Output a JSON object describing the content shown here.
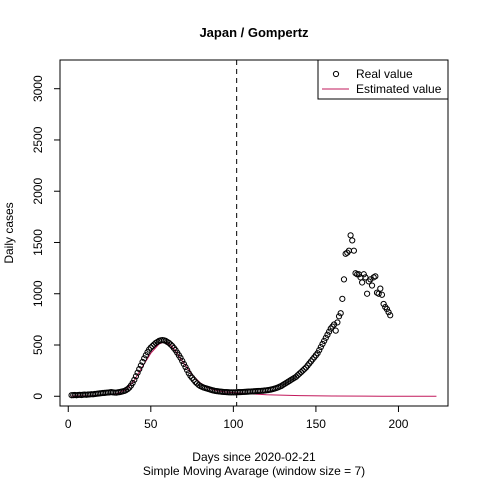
{
  "chart_data": {
    "type": "scatter",
    "title": "Japan / Gompertz",
    "xlabel": "Days since 2020-02-21",
    "subtitle": "Simple Moving Avarage (window size = 7)",
    "ylabel": "Daily cases",
    "xlim": [
      -5,
      230
    ],
    "ylim": [
      -95,
      3280
    ],
    "x_ticks": [
      0,
      50,
      100,
      150,
      200
    ],
    "y_ticks": [
      0,
      500,
      1000,
      1500,
      2000,
      2500,
      3000
    ],
    "vline": {
      "x": 102,
      "style": "dashed"
    },
    "grid": false,
    "legend": {
      "position": "top-right",
      "entries": [
        {
          "label": "Real value",
          "marker": "open-circle",
          "color": "#000000"
        },
        {
          "label": "Estimated value",
          "marker": "line",
          "color": "#c2185b"
        }
      ]
    },
    "series": [
      {
        "name": "Real value",
        "style": "points",
        "color": "#000000",
        "points": [
          [
            2,
            10
          ],
          [
            3,
            11
          ],
          [
            4,
            12
          ],
          [
            5,
            10
          ],
          [
            6,
            13
          ],
          [
            7,
            14
          ],
          [
            8,
            12
          ],
          [
            9,
            15
          ],
          [
            10,
            16
          ],
          [
            11,
            14
          ],
          [
            12,
            17
          ],
          [
            13,
            18
          ],
          [
            14,
            20
          ],
          [
            15,
            19
          ],
          [
            16,
            22
          ],
          [
            17,
            24
          ],
          [
            18,
            26
          ],
          [
            19,
            28
          ],
          [
            20,
            30
          ],
          [
            21,
            32
          ],
          [
            22,
            33
          ],
          [
            23,
            35
          ],
          [
            24,
            36
          ],
          [
            25,
            38
          ],
          [
            26,
            40
          ],
          [
            27,
            38
          ],
          [
            28,
            36
          ],
          [
            29,
            35
          ],
          [
            30,
            38
          ],
          [
            31,
            40
          ],
          [
            32,
            44
          ],
          [
            33,
            48
          ],
          [
            34,
            52
          ],
          [
            35,
            60
          ],
          [
            36,
            70
          ],
          [
            37,
            85
          ],
          [
            38,
            105
          ],
          [
            39,
            130
          ],
          [
            40,
            160
          ],
          [
            41,
            195
          ],
          [
            42,
            230
          ],
          [
            43,
            265
          ],
          [
            44,
            300
          ],
          [
            45,
            335
          ],
          [
            46,
            370
          ],
          [
            47,
            400
          ],
          [
            48,
            430
          ],
          [
            49,
            455
          ],
          [
            50,
            475
          ],
          [
            51,
            490
          ],
          [
            52,
            505
          ],
          [
            53,
            520
          ],
          [
            54,
            530
          ],
          [
            55,
            540
          ],
          [
            56,
            545
          ],
          [
            57,
            548
          ],
          [
            58,
            545
          ],
          [
            59,
            540
          ],
          [
            60,
            530
          ],
          [
            61,
            520
          ],
          [
            62,
            505
          ],
          [
            63,
            490
          ],
          [
            64,
            470
          ],
          [
            65,
            450
          ],
          [
            66,
            425
          ],
          [
            67,
            400
          ],
          [
            68,
            375
          ],
          [
            69,
            345
          ],
          [
            70,
            315
          ],
          [
            71,
            285
          ],
          [
            72,
            255
          ],
          [
            73,
            225
          ],
          [
            74,
            200
          ],
          [
            75,
            180
          ],
          [
            76,
            160
          ],
          [
            77,
            140
          ],
          [
            78,
            125
          ],
          [
            79,
            110
          ],
          [
            80,
            100
          ],
          [
            81,
            92
          ],
          [
            82,
            85
          ],
          [
            83,
            80
          ],
          [
            84,
            75
          ],
          [
            85,
            70
          ],
          [
            86,
            65
          ],
          [
            87,
            60
          ],
          [
            88,
            56
          ],
          [
            89,
            52
          ],
          [
            90,
            50
          ],
          [
            91,
            48
          ],
          [
            92,
            46
          ],
          [
            93,
            44
          ],
          [
            94,
            42
          ],
          [
            95,
            41
          ],
          [
            96,
            40
          ],
          [
            97,
            39
          ],
          [
            98,
            38
          ],
          [
            99,
            38
          ],
          [
            100,
            38
          ],
          [
            101,
            38
          ],
          [
            102,
            39
          ],
          [
            103,
            40
          ],
          [
            104,
            40
          ],
          [
            105,
            41
          ],
          [
            106,
            42
          ],
          [
            107,
            43
          ],
          [
            108,
            44
          ],
          [
            109,
            45
          ],
          [
            110,
            46
          ],
          [
            111,
            47
          ],
          [
            112,
            48
          ],
          [
            113,
            49
          ],
          [
            114,
            50
          ],
          [
            115,
            51
          ],
          [
            116,
            52
          ],
          [
            117,
            53
          ],
          [
            118,
            54
          ],
          [
            119,
            56
          ],
          [
            120,
            58
          ],
          [
            121,
            60
          ],
          [
            122,
            63
          ],
          [
            123,
            66
          ],
          [
            124,
            70
          ],
          [
            125,
            75
          ],
          [
            126,
            80
          ],
          [
            127,
            86
          ],
          [
            128,
            93
          ],
          [
            129,
            100
          ],
          [
            130,
            110
          ],
          [
            131,
            120
          ],
          [
            132,
            130
          ],
          [
            133,
            140
          ],
          [
            134,
            150
          ],
          [
            135,
            160
          ],
          [
            136,
            170
          ],
          [
            137,
            180
          ],
          [
            138,
            190
          ],
          [
            139,
            205
          ],
          [
            140,
            220
          ],
          [
            141,
            235
          ],
          [
            142,
            250
          ],
          [
            143,
            265
          ],
          [
            144,
            280
          ],
          [
            145,
            300
          ],
          [
            146,
            320
          ],
          [
            147,
            340
          ],
          [
            148,
            360
          ],
          [
            149,
            380
          ],
          [
            150,
            400
          ],
          [
            151,
            420
          ],
          [
            152,
            450
          ],
          [
            153,
            480
          ],
          [
            154,
            510
          ],
          [
            155,
            540
          ],
          [
            156,
            570
          ],
          [
            157,
            600
          ],
          [
            158,
            630
          ],
          [
            159,
            660
          ],
          [
            160,
            680
          ],
          [
            161,
            700
          ],
          [
            162,
            640
          ],
          [
            163,
            720
          ],
          [
            164,
            780
          ],
          [
            165,
            810
          ],
          [
            166,
            950
          ],
          [
            167,
            1140
          ],
          [
            168,
            1390
          ],
          [
            169,
            1400
          ],
          [
            170,
            1420
          ],
          [
            171,
            1570
          ],
          [
            172,
            1520
          ],
          [
            173,
            1420
          ],
          [
            174,
            1200
          ],
          [
            175,
            1190
          ],
          [
            176,
            1190
          ],
          [
            177,
            1160
          ],
          [
            178,
            1110
          ],
          [
            179,
            1190
          ],
          [
            180,
            1160
          ],
          [
            181,
            1000
          ],
          [
            182,
            1120
          ],
          [
            183,
            1140
          ],
          [
            184,
            1080
          ],
          [
            185,
            1160
          ],
          [
            186,
            1170
          ],
          [
            187,
            1010
          ],
          [
            188,
            1000
          ],
          [
            189,
            1050
          ],
          [
            190,
            990
          ],
          [
            191,
            900
          ],
          [
            192,
            870
          ],
          [
            193,
            850
          ],
          [
            194,
            820
          ],
          [
            195,
            790
          ]
        ]
      },
      {
        "name": "Estimated value",
        "style": "line",
        "color": "#c2185b",
        "points": [
          [
            2,
            2
          ],
          [
            15,
            5
          ],
          [
            25,
            15
          ],
          [
            30,
            28
          ],
          [
            35,
            65
          ],
          [
            40,
            155
          ],
          [
            45,
            290
          ],
          [
            50,
            420
          ],
          [
            55,
            510
          ],
          [
            58,
            530
          ],
          [
            62,
            500
          ],
          [
            65,
            440
          ],
          [
            70,
            320
          ],
          [
            75,
            210
          ],
          [
            80,
            130
          ],
          [
            85,
            80
          ],
          [
            90,
            55
          ],
          [
            95,
            42
          ],
          [
            100,
            35
          ],
          [
            110,
            25
          ],
          [
            120,
            15
          ],
          [
            140,
            6
          ],
          [
            160,
            3
          ],
          [
            180,
            1
          ],
          [
            200,
            0
          ],
          [
            223,
            0
          ]
        ]
      }
    ]
  }
}
